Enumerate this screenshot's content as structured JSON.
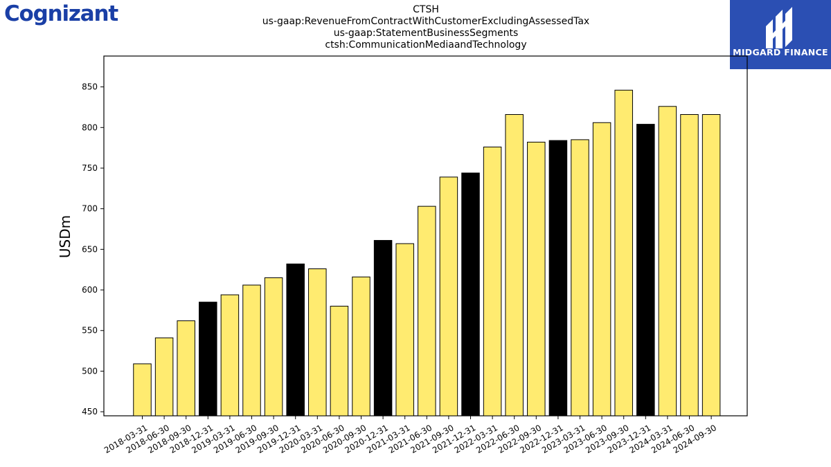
{
  "brand": {
    "company_logo_text": "Cognizant",
    "partner_logo_text": "MIDGARD FINANCE",
    "partner_color": "#2b4fb3",
    "company_color": "#1a3fa6"
  },
  "chart_data": {
    "type": "bar",
    "title": [
      "CTSH",
      "us-gaap:RevenueFromContractWithCustomerExcludingAssessedTax",
      "us-gaap:StatementBusinessSegments",
      "ctsh:CommunicationMediaandTechnology"
    ],
    "xlabel": "",
    "ylabel": "USDm",
    "ylim": [
      445,
      888
    ],
    "yticks": [
      450,
      500,
      550,
      600,
      650,
      700,
      750,
      800,
      850
    ],
    "grid": false,
    "colors": {
      "quarter": "#ffeb70",
      "year_end": "#000000",
      "edge": "#000000"
    },
    "categories": [
      "2018-03-31",
      "2018-06-30",
      "2018-09-30",
      "2018-12-31",
      "2019-03-31",
      "2019-06-30",
      "2019-09-30",
      "2019-12-31",
      "2020-03-31",
      "2020-06-30",
      "2020-09-30",
      "2020-12-31",
      "2021-03-31",
      "2021-06-30",
      "2021-09-30",
      "2021-12-31",
      "2022-03-31",
      "2022-06-30",
      "2022-09-30",
      "2022-12-31",
      "2023-03-31",
      "2023-06-30",
      "2023-09-30",
      "2023-12-31",
      "2024-03-31",
      "2024-06-30",
      "2024-09-30"
    ],
    "values": [
      509,
      541,
      562,
      585,
      594,
      606,
      615,
      632,
      626,
      580,
      616,
      661,
      657,
      703,
      739,
      744,
      776,
      816,
      782,
      784,
      785,
      806,
      846,
      804,
      826,
      816,
      816
    ]
  }
}
